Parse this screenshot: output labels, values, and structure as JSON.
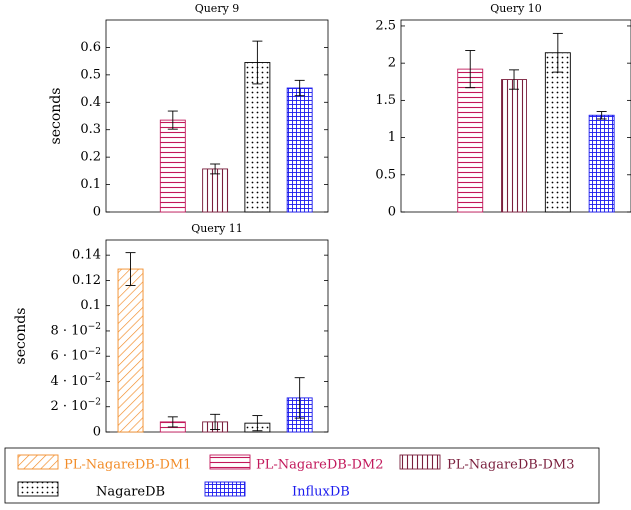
{
  "ylabel": "seconds",
  "legend": [
    {
      "name": "PL-NagareDB-DM1",
      "color": "#f28c28",
      "pattern": "diag"
    },
    {
      "name": "PL-NagareDB-DM2",
      "color": "#c2185b",
      "pattern": "hlines"
    },
    {
      "name": "PL-NagareDB-DM3",
      "color": "#7a1f3d",
      "pattern": "vlines"
    },
    {
      "name": "NagareDB",
      "color": "#000000",
      "pattern": "dots"
    },
    {
      "name": "InfluxDB",
      "color": "#1a1aee",
      "pattern": "grid"
    }
  ],
  "chart_data": [
    {
      "type": "bar",
      "title": "Query 9",
      "ylabel": "seconds",
      "ylim": [
        0,
        0.7
      ],
      "yticks": [
        0,
        0.1,
        0.2,
        0.3,
        0.4,
        0.5,
        0.6
      ],
      "ytick_labels": [
        "0",
        "0.1",
        "0.2",
        "0.3",
        "0.4",
        "0.5",
        "0.6"
      ],
      "series": [
        {
          "name": "PL-NagareDB-DM1",
          "value": null,
          "error": null
        },
        {
          "name": "PL-NagareDB-DM2",
          "value": 0.335,
          "error": 0.033
        },
        {
          "name": "PL-NagareDB-DM3",
          "value": 0.157,
          "error": 0.018
        },
        {
          "name": "NagareDB",
          "value": 0.545,
          "error": 0.078
        },
        {
          "name": "InfluxDB",
          "value": 0.452,
          "error": 0.028
        }
      ]
    },
    {
      "type": "bar",
      "title": "Query 10",
      "ylabel": "",
      "ylim": [
        0,
        2.58
      ],
      "yticks": [
        0,
        0.5,
        1,
        1.5,
        2,
        2.5
      ],
      "ytick_labels": [
        "0",
        "0.5",
        "1",
        "1.5",
        "2",
        "2.5"
      ],
      "series": [
        {
          "name": "PL-NagareDB-DM1",
          "value": null,
          "error": null
        },
        {
          "name": "PL-NagareDB-DM2",
          "value": 1.92,
          "error": 0.25
        },
        {
          "name": "PL-NagareDB-DM3",
          "value": 1.78,
          "error": 0.13
        },
        {
          "name": "NagareDB",
          "value": 2.14,
          "error": 0.26
        },
        {
          "name": "InfluxDB",
          "value": 1.3,
          "error": 0.05
        }
      ]
    },
    {
      "type": "bar",
      "title": "Query 11",
      "ylabel": "seconds",
      "ylim": [
        0,
        0.152
      ],
      "yticks": [
        0,
        0.02,
        0.04,
        0.06,
        0.08,
        0.1,
        0.12,
        0.14
      ],
      "ytick_labels": [
        "0",
        "2 · 10^−2",
        "4 · 10^−2",
        "6 · 10^−2",
        "8 · 10^−2",
        "0.1",
        "0.12",
        "0.14"
      ],
      "series": [
        {
          "name": "PL-NagareDB-DM1",
          "value": 0.129,
          "error": 0.013
        },
        {
          "name": "PL-NagareDB-DM2",
          "value": 0.008,
          "error": 0.004
        },
        {
          "name": "PL-NagareDB-DM3",
          "value": 0.008,
          "error": 0.006
        },
        {
          "name": "NagareDB",
          "value": 0.007,
          "error": 0.006
        },
        {
          "name": "InfluxDB",
          "value": 0.027,
          "error": 0.016
        }
      ]
    }
  ]
}
